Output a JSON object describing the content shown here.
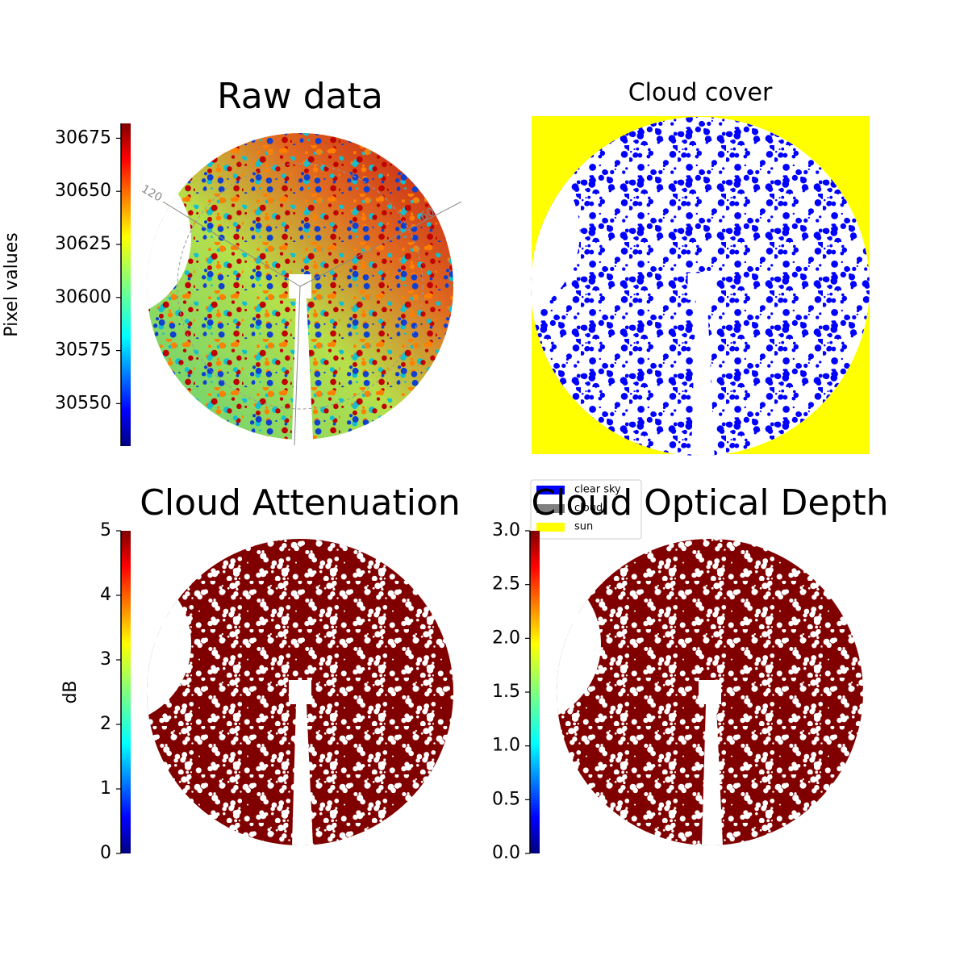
{
  "chart_data": [
    {
      "type": "image",
      "title": "Raw data",
      "colorbar_label": "Pixel values",
      "cmap": "jet",
      "ylim": [
        30530,
        30682
      ],
      "yticks": [
        30550,
        30575,
        30600,
        30625,
        30650,
        30675
      ],
      "annotations": [
        "120",
        "60"
      ]
    },
    {
      "type": "image",
      "title": "Cloud cover",
      "legend": [
        {
          "name": "clear sky",
          "color": "#0000ff"
        },
        {
          "name": "cloud",
          "color": "#808080"
        },
        {
          "name": "sun",
          "color": "#ffff00"
        }
      ]
    },
    {
      "type": "image",
      "title": "Cloud Attenuation",
      "colorbar_label": "dB",
      "cmap": "jet",
      "ylim": [
        0,
        5
      ],
      "yticks": [
        0,
        1,
        2,
        3,
        4,
        5
      ]
    },
    {
      "type": "image",
      "title": "Cloud Optical Depth",
      "cmap": "jet",
      "ylim": [
        0,
        3
      ],
      "yticks": [
        {
          "value": 0,
          "label": "0.0"
        },
        {
          "value": 0.5,
          "label": "0.5"
        },
        {
          "value": 1,
          "label": "1.0"
        },
        {
          "value": 1.5,
          "label": "1.5"
        },
        {
          "value": 2,
          "label": "2.0"
        },
        {
          "value": 2.5,
          "label": "2.5"
        },
        {
          "value": 3,
          "label": "3.0"
        }
      ]
    }
  ]
}
